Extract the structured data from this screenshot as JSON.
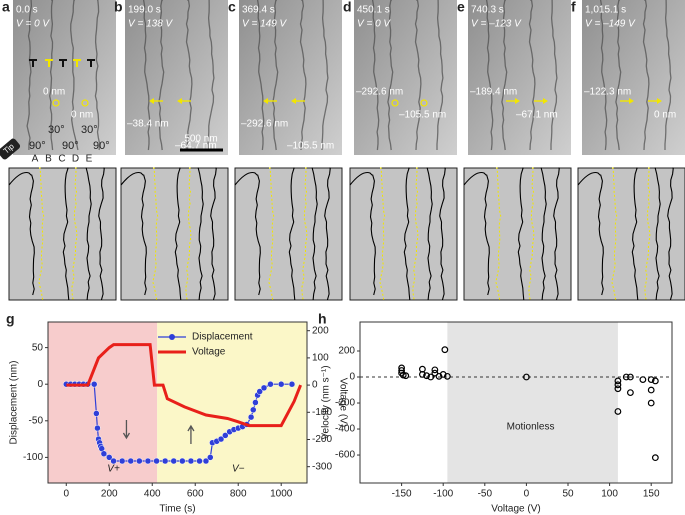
{
  "panels": [
    {
      "letter": "a",
      "time": "0.0 s",
      "voltage": "V = 0 V",
      "labels": [
        "0 nm",
        "0 nm"
      ],
      "angles": [
        "30°",
        "30°",
        "90°",
        "90°",
        "90°"
      ],
      "walls": [
        "A",
        "B",
        "C",
        "D",
        "E"
      ],
      "tip": "Tip"
    },
    {
      "letter": "b",
      "time": "199.0 s",
      "voltage": "V = 138 V",
      "labels": [
        "–38.4 nm",
        "–64.7 nm"
      ],
      "scale_bar": "500 nm"
    },
    {
      "letter": "c",
      "time": "369.4 s",
      "voltage": "V = 149 V",
      "labels": [
        "–292.6 nm",
        "–105.5 nm"
      ]
    },
    {
      "letter": "d",
      "time": "450.1 s",
      "voltage": "V = 0 V",
      "labels": [
        "–292.6 nm",
        "–105.5 nm"
      ]
    },
    {
      "letter": "e",
      "time": "740.3 s",
      "voltage": "V = –123 V",
      "labels": [
        "–189.4 nm",
        "–67.1 nm"
      ]
    },
    {
      "letter": "f",
      "time": "1,015.1 s",
      "voltage": "V = –149 V",
      "labels": [
        "–122.3 nm",
        "0 nm"
      ]
    }
  ],
  "chart_data": [
    {
      "type": "line",
      "panel_label": "g",
      "x_label": "Time (s)",
      "y_label": "Displacement (nm)",
      "y2_label": "Voltage (V)",
      "xlim": [
        -85,
        1120
      ],
      "xticks": [
        0,
        200,
        400,
        600,
        800,
        1000
      ],
      "ylim": [
        -135,
        85
      ],
      "yticks": [
        50,
        0,
        -50,
        -100
      ],
      "y2lim": [
        -360,
        232
      ],
      "y2ticks": [
        200,
        100,
        0,
        -100,
        -200,
        -300
      ],
      "regions": [
        {
          "from": -85,
          "to": 423,
          "color": "#f7cccc"
        },
        {
          "from": 423,
          "to": 1120,
          "color": "#fbf7c8"
        }
      ],
      "legend": "upper center",
      "annotations": [
        "V+",
        "V−"
      ],
      "series": [
        {
          "name": "Displacement",
          "color": "#2f3fd8",
          "marker": true,
          "x": [
            0,
            20,
            40,
            60,
            80,
            100,
            130,
            140,
            145,
            150,
            155,
            160,
            165,
            175,
            200,
            220,
            260,
            300,
            340,
            380,
            420,
            460,
            500,
            540,
            580,
            620,
            650,
            670,
            680,
            700,
            720,
            740,
            760,
            780,
            800,
            820,
            840,
            860,
            870,
            880,
            890,
            900,
            920,
            950,
            1000,
            1050
          ],
          "values": [
            0,
            0,
            0,
            0,
            0,
            0,
            0,
            -40,
            -60,
            -75,
            -80,
            -85,
            -88,
            -95,
            -100,
            -105,
            -105,
            -105,
            -105,
            -105,
            -105,
            -105,
            -105,
            -105,
            -105,
            -105,
            -105,
            -100,
            -80,
            -78,
            -75,
            -70,
            -65,
            -62,
            -60,
            -58,
            -55,
            -45,
            -35,
            -25,
            -15,
            -10,
            -5,
            0,
            0,
            0
          ]
        },
        {
          "name": "Voltage",
          "color": "#e8201a",
          "axis": "y2",
          "marker": false,
          "x": [
            0,
            100,
            150,
            200,
            220,
            300,
            390,
            410,
            450,
            470,
            550,
            650,
            750,
            800,
            850,
            1000,
            1060,
            1090
          ],
          "values": [
            0,
            0,
            100,
            138,
            149,
            149,
            149,
            0,
            0,
            -50,
            -80,
            -110,
            -123,
            -135,
            -149,
            -149,
            -60,
            0
          ]
        }
      ]
    },
    {
      "type": "scatter",
      "panel_label": "h",
      "x_label": "Voltage (V)",
      "y_label": "Velocity (nm s⁻¹)",
      "xlim": [
        -200,
        175
      ],
      "xticks": [
        -150,
        -100,
        -50,
        0,
        50,
        100,
        150
      ],
      "ylim": [
        -815,
        423
      ],
      "yticks": [
        200,
        0,
        -200,
        -400,
        -600
      ],
      "regions": [
        {
          "from": -95,
          "to": 110,
          "color": "#e4e4e4"
        }
      ],
      "hline": 0,
      "annotations": [
        "Motionless"
      ],
      "series": [
        {
          "name": "Velocity",
          "color": "#000000",
          "x": [
            -150,
            -150,
            -150,
            -148,
            -145,
            -125,
            -125,
            -120,
            -115,
            -110,
            -110,
            -105,
            -100,
            -98,
            -95,
            0,
            110,
            110,
            110,
            110,
            120,
            125,
            125,
            140,
            150,
            150,
            155,
            150,
            155
          ],
          "values": [
            70,
            50,
            30,
            15,
            10,
            60,
            20,
            10,
            0,
            55,
            30,
            5,
            20,
            210,
            5,
            0,
            -30,
            -60,
            -90,
            -265,
            0,
            0,
            -120,
            -20,
            -20,
            -100,
            -30,
            -200,
            -620
          ]
        }
      ]
    }
  ]
}
